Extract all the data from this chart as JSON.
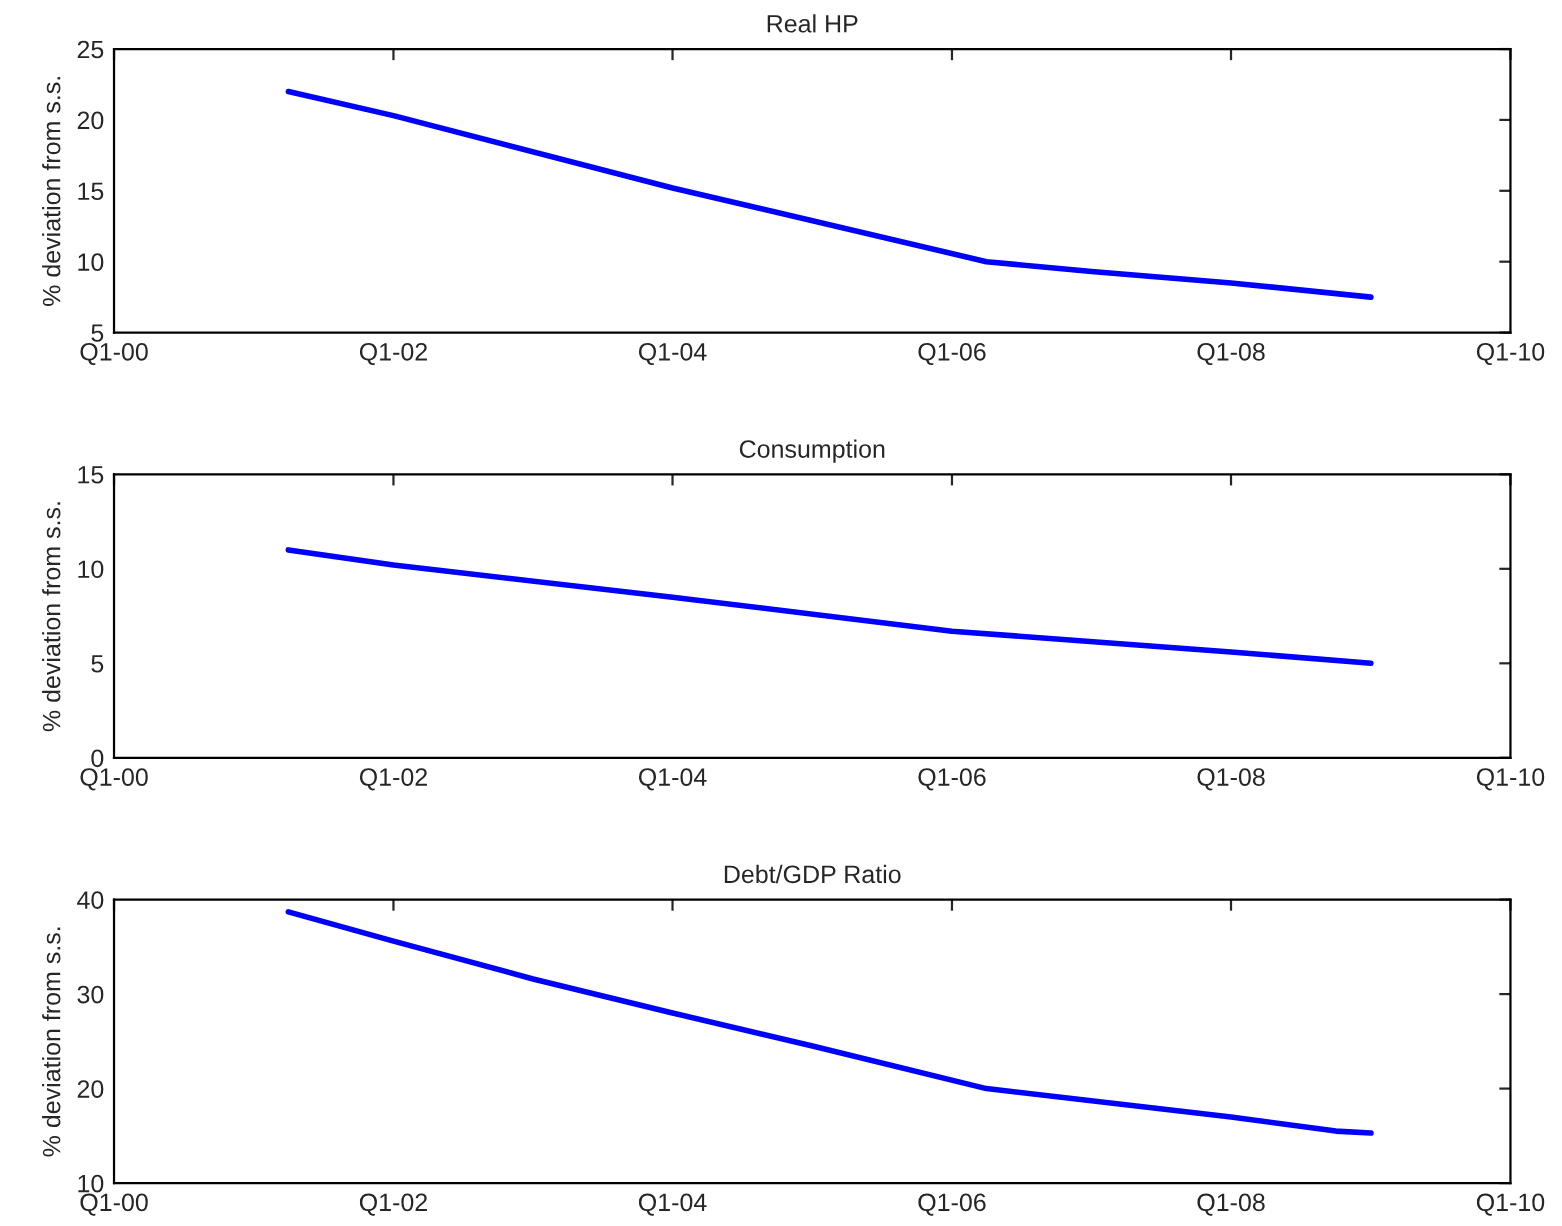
{
  "chart_data": [
    {
      "type": "line",
      "title": "Real HP",
      "ylabel": "% deviation from s.s.",
      "x": [
        "2001-04",
        "2002-01",
        "2004-01",
        "2006-04",
        "2007-01",
        "2008-01",
        "2009-01"
      ],
      "series": [
        {
          "color": "#0000ff",
          "values": [
            22,
            20.3,
            15.2,
            10,
            9.3,
            8.5,
            7.5
          ]
        }
      ],
      "xlim": [
        "2000-01",
        "2010-01"
      ],
      "xticks": [
        {
          "value": "2000-01",
          "label": "Q1-00"
        },
        {
          "value": "2002-01",
          "label": "Q1-02"
        },
        {
          "value": "2004-01",
          "label": "Q1-04"
        },
        {
          "value": "2006-01",
          "label": "Q1-06"
        },
        {
          "value": "2008-01",
          "label": "Q1-08"
        },
        {
          "value": "2010-01",
          "label": "Q1-10"
        }
      ],
      "ylim": [
        5,
        25
      ],
      "yticks": [
        5,
        10,
        15,
        20,
        25
      ],
      "grid": false
    },
    {
      "type": "line",
      "title": "Consumption",
      "ylabel": "% deviation from s.s.",
      "x": [
        "2001-04",
        "2002-01",
        "2004-01",
        "2006-01",
        "2008-01",
        "2009-01"
      ],
      "series": [
        {
          "color": "#0000ff",
          "values": [
            11,
            10.2,
            8.5,
            6.7,
            5.6,
            5.0
          ]
        }
      ],
      "xlim": [
        "2000-01",
        "2010-01"
      ],
      "xticks": [
        {
          "value": "2000-01",
          "label": "Q1-00"
        },
        {
          "value": "2002-01",
          "label": "Q1-02"
        },
        {
          "value": "2004-01",
          "label": "Q1-04"
        },
        {
          "value": "2006-01",
          "label": "Q1-06"
        },
        {
          "value": "2008-01",
          "label": "Q1-08"
        },
        {
          "value": "2010-01",
          "label": "Q1-10"
        }
      ],
      "ylim": [
        0,
        15
      ],
      "yticks": [
        0,
        5,
        10,
        15
      ],
      "grid": false
    },
    {
      "type": "line",
      "title": "Debt/GDP Ratio",
      "ylabel": "% deviation from s.s.",
      "x": [
        "2001-04",
        "2002-01",
        "2003-01",
        "2004-01",
        "2005-01",
        "2006-04",
        "2008-01",
        "2008-10",
        "2009-01"
      ],
      "series": [
        {
          "color": "#0000ff",
          "values": [
            38.7,
            35.6,
            31.6,
            28,
            24.5,
            20,
            17,
            15.5,
            15.3
          ]
        }
      ],
      "xlim": [
        "2000-01",
        "2010-01"
      ],
      "xticks": [
        {
          "value": "2000-01",
          "label": "Q1-00"
        },
        {
          "value": "2002-01",
          "label": "Q1-02"
        },
        {
          "value": "2004-01",
          "label": "Q1-04"
        },
        {
          "value": "2006-01",
          "label": "Q1-06"
        },
        {
          "value": "2008-01",
          "label": "Q1-08"
        },
        {
          "value": "2010-01",
          "label": "Q1-10"
        }
      ],
      "ylim": [
        10,
        40
      ],
      "yticks": [
        10,
        20,
        30,
        40
      ],
      "grid": false
    }
  ]
}
